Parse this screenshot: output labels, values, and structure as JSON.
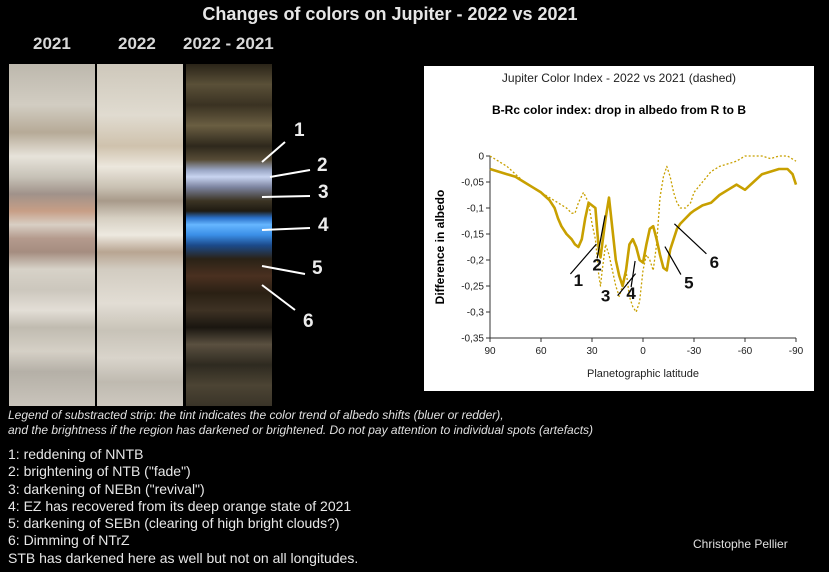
{
  "title": "Changes of colors on Jupiter - 2022 vs 2021",
  "strips": [
    {
      "label": "2021"
    },
    {
      "label": "2022"
    },
    {
      "label": "2022 - 2021"
    }
  ],
  "strip_annotations": [
    "1",
    "2",
    "3",
    "4",
    "5",
    "6"
  ],
  "chart_data": {
    "type": "line",
    "title": "Jupiter Color Index - 2022 vs 2021 (dashed)",
    "subtitle": "B-Rc color index: drop in albedo from R to B",
    "xlabel": "Planetographic latitude",
    "ylabel": "Difference in albedo",
    "xlim": [
      90,
      -90
    ],
    "ylim": [
      -0.35,
      0
    ],
    "x_ticks": [
      "90",
      "60",
      "30",
      "0",
      "-30",
      "-60",
      "-90"
    ],
    "y_ticks": [
      "0",
      "-0,05",
      "-0,1",
      "-0,15",
      "-0,2",
      "-0,25",
      "-0,3",
      "-0,35"
    ],
    "grid": false,
    "series": [
      {
        "style": "solid",
        "color": "#c8a000",
        "x": [
          90,
          85,
          80,
          75,
          70,
          65,
          60,
          55,
          52,
          50,
          48,
          45,
          42,
          40,
          38,
          36,
          34,
          32,
          30,
          28,
          26,
          25,
          24,
          22,
          20,
          18,
          16,
          14,
          12,
          10,
          8,
          6,
          4,
          2,
          0,
          -2,
          -4,
          -6,
          -8,
          -10,
          -12,
          -14,
          -16,
          -18,
          -20,
          -22,
          -25,
          -28,
          -30,
          -35,
          -40,
          -45,
          -50,
          -55,
          -60,
          -65,
          -70,
          -75,
          -80,
          -85,
          -88,
          -90
        ],
        "y": [
          -0.025,
          -0.03,
          -0.035,
          -0.04,
          -0.05,
          -0.06,
          -0.07,
          -0.085,
          -0.1,
          -0.12,
          -0.135,
          -0.15,
          -0.16,
          -0.17,
          -0.175,
          -0.16,
          -0.12,
          -0.09,
          -0.095,
          -0.1,
          -0.18,
          -0.195,
          -0.17,
          -0.12,
          -0.08,
          -0.14,
          -0.2,
          -0.23,
          -0.25,
          -0.22,
          -0.17,
          -0.16,
          -0.175,
          -0.2,
          -0.205,
          -0.17,
          -0.14,
          -0.135,
          -0.16,
          -0.19,
          -0.215,
          -0.22,
          -0.18,
          -0.16,
          -0.14,
          -0.13,
          -0.12,
          -0.11,
          -0.105,
          -0.095,
          -0.09,
          -0.075,
          -0.065,
          -0.055,
          -0.065,
          -0.05,
          -0.035,
          -0.03,
          -0.025,
          -0.025,
          -0.035,
          -0.055
        ]
      },
      {
        "style": "dashed",
        "color": "#c8a000",
        "x": [
          90,
          85,
          80,
          75,
          70,
          65,
          60,
          55,
          50,
          45,
          42,
          40,
          38,
          35,
          32,
          30,
          28,
          26,
          25,
          24,
          22,
          20,
          18,
          16,
          14,
          12,
          10,
          8,
          6,
          4,
          2,
          0,
          -2,
          -4,
          -6,
          -8,
          -10,
          -12,
          -14,
          -16,
          -18,
          -20,
          -22,
          -25,
          -28,
          -30,
          -35,
          -40,
          -45,
          -50,
          -55,
          -60,
          -65,
          -70,
          -75,
          -80,
          -85,
          -90
        ],
        "y": [
          0,
          -0.01,
          -0.02,
          -0.035,
          -0.05,
          -0.06,
          -0.07,
          -0.08,
          -0.09,
          -0.1,
          -0.11,
          -0.11,
          -0.09,
          -0.07,
          -0.09,
          -0.13,
          -0.16,
          -0.23,
          -0.25,
          -0.22,
          -0.17,
          -0.19,
          -0.22,
          -0.25,
          -0.27,
          -0.25,
          -0.22,
          -0.27,
          -0.29,
          -0.3,
          -0.28,
          -0.22,
          -0.19,
          -0.2,
          -0.22,
          -0.17,
          -0.08,
          -0.04,
          -0.02,
          -0.04,
          -0.07,
          -0.09,
          -0.1,
          -0.1,
          -0.09,
          -0.07,
          -0.05,
          -0.03,
          -0.02,
          -0.015,
          -0.01,
          0,
          0,
          0,
          -0.005,
          0,
          0,
          -0.01
        ]
      }
    ],
    "annotations": [
      {
        "label": "1",
        "x": 38,
        "y": -0.25
      },
      {
        "label": "2",
        "x": 27,
        "y": -0.22
      },
      {
        "label": "3",
        "x": 22,
        "y": -0.28
      },
      {
        "label": "4",
        "x": 7,
        "y": -0.275
      },
      {
        "label": "5",
        "x": -27,
        "y": -0.255
      },
      {
        "label": "6",
        "x": -42,
        "y": -0.215
      }
    ]
  },
  "legend_note": [
    "Legend of substracted strip: the tint indicates the color trend of albedo shifts (bluer or redder),",
    "and the brightness if the region has darkened or brightened. Do not pay attention to individual spots (artefacts)"
  ],
  "items": [
    "1: reddening of NNTB",
    "2: brightening of NTB (\"fade\")",
    "3: darkening of NEBn (\"revival\")",
    "4: EZ has recovered from its deep orange state of 2021",
    "5: darkening of SEBn (clearing of high bright clouds?)",
    "6: Dimming of NTrZ",
    "STB has darkened here as well but not on all longitudes."
  ],
  "credit": "Christophe Pellier"
}
